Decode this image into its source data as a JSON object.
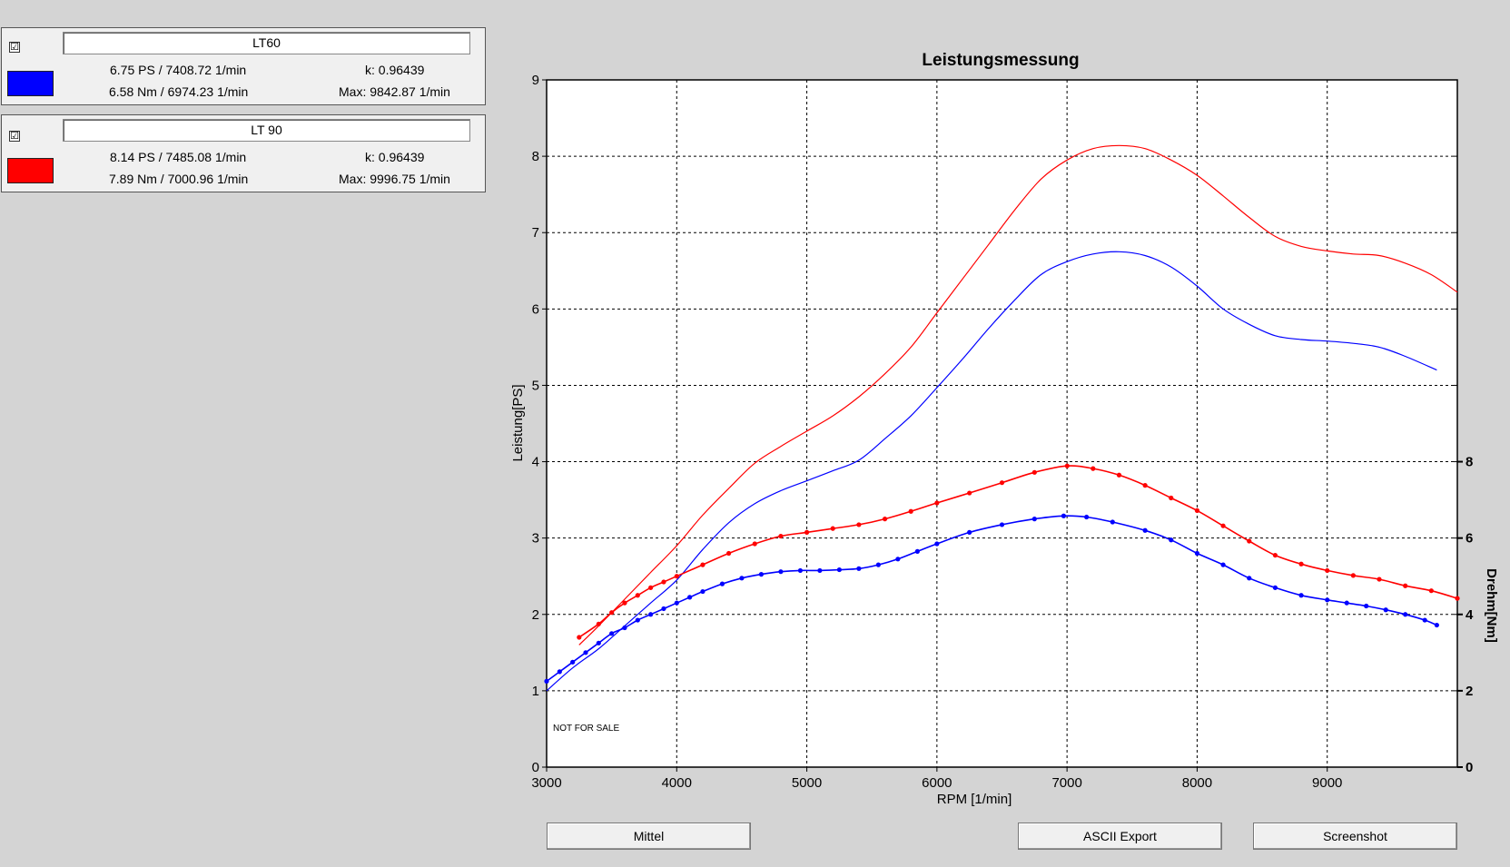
{
  "legend": [
    {
      "name": "LT60",
      "checked": "☑",
      "color": "#0000ff",
      "power": "6.75 PS / 7408.72 1/min",
      "k": "k: 0.96439",
      "torque": "6.58 Nm / 6974.23 1/min",
      "max": "Max: 9842.87 1/min"
    },
    {
      "name": "LT 90",
      "checked": "☑",
      "color": "#ff0000",
      "power": "8.14 PS / 7485.08 1/min",
      "k": "k: 0.96439",
      "torque": "7.89 Nm / 7000.96 1/min",
      "max": "Max: 9996.75 1/min"
    }
  ],
  "buttons": {
    "mittel": "Mittel",
    "ascii": "ASCII Export",
    "screenshot": "Screenshot"
  },
  "watermark": "NOT FOR SALE",
  "chart_data": {
    "type": "line",
    "title": "Leistungsmessung",
    "xlabel": "RPM [1/min]",
    "ylabel": "Leistung[PS]",
    "y2label": "Drehm[Nm]",
    "xlim": [
      3000,
      10000
    ],
    "ylim": [
      0,
      9
    ],
    "y2lim": [
      0,
      18
    ],
    "xticks": [
      3000,
      4000,
      5000,
      6000,
      7000,
      8000,
      9000
    ],
    "yticks": [
      0,
      1,
      2,
      3,
      4,
      5,
      6,
      7,
      8,
      9
    ],
    "y2ticks": [
      0,
      2,
      4,
      6,
      8
    ],
    "grid": true,
    "series": [
      {
        "name": "LT60",
        "quantity": "power",
        "color": "#0000ff",
        "markers": false,
        "x": [
          3000,
          3200,
          3400,
          3600,
          3800,
          4000,
          4200,
          4400,
          4600,
          4800,
          5000,
          5200,
          5400,
          5600,
          5800,
          6000,
          6200,
          6400,
          6600,
          6800,
          7000,
          7200,
          7400,
          7600,
          7800,
          8000,
          8200,
          8400,
          8600,
          8800,
          9000,
          9200,
          9400,
          9600,
          9842
        ],
        "y": [
          1.0,
          1.3,
          1.55,
          1.85,
          2.15,
          2.45,
          2.85,
          3.2,
          3.45,
          3.62,
          3.75,
          3.88,
          4.02,
          4.3,
          4.6,
          4.97,
          5.35,
          5.75,
          6.12,
          6.45,
          6.62,
          6.72,
          6.75,
          6.7,
          6.55,
          6.3,
          6.0,
          5.8,
          5.65,
          5.6,
          5.58,
          5.55,
          5.5,
          5.38,
          5.2
        ]
      },
      {
        "name": "LT 90",
        "quantity": "power",
        "color": "#ff0000",
        "markers": false,
        "x": [
          3250,
          3400,
          3600,
          3800,
          4000,
          4200,
          4400,
          4600,
          4800,
          5000,
          5200,
          5400,
          5600,
          5800,
          6000,
          6200,
          6400,
          6600,
          6800,
          7000,
          7200,
          7400,
          7600,
          7800,
          8000,
          8200,
          8400,
          8600,
          8800,
          9000,
          9200,
          9400,
          9600,
          9800,
          10000
        ],
        "y": [
          1.6,
          1.85,
          2.2,
          2.55,
          2.9,
          3.3,
          3.65,
          3.98,
          4.2,
          4.4,
          4.6,
          4.85,
          5.15,
          5.5,
          5.95,
          6.4,
          6.85,
          7.3,
          7.7,
          7.95,
          8.1,
          8.14,
          8.1,
          7.95,
          7.75,
          7.48,
          7.2,
          6.95,
          6.82,
          6.76,
          6.72,
          6.7,
          6.6,
          6.45,
          6.22
        ]
      },
      {
        "name": "LT60",
        "quantity": "torque",
        "color": "#0000ff",
        "markers": true,
        "x": [
          3000,
          3100,
          3200,
          3300,
          3400,
          3500,
          3600,
          3700,
          3800,
          3900,
          4000,
          4100,
          4200,
          4350,
          4500,
          4650,
          4800,
          4950,
          5100,
          5250,
          5400,
          5550,
          5700,
          5850,
          6000,
          6250,
          6500,
          6750,
          6974,
          7150,
          7350,
          7600,
          7800,
          8000,
          8200,
          8400,
          8600,
          8800,
          9000,
          9150,
          9300,
          9450,
          9600,
          9750,
          9842
        ],
        "y": [
          2.25,
          2.5,
          2.75,
          3.0,
          3.25,
          3.5,
          3.65,
          3.85,
          4.0,
          4.15,
          4.3,
          4.45,
          4.6,
          4.8,
          4.95,
          5.05,
          5.12,
          5.15,
          5.15,
          5.17,
          5.2,
          5.3,
          5.45,
          5.65,
          5.85,
          6.15,
          6.35,
          6.5,
          6.58,
          6.55,
          6.42,
          6.2,
          5.95,
          5.6,
          5.3,
          4.95,
          4.7,
          4.5,
          4.38,
          4.3,
          4.22,
          4.12,
          4.0,
          3.85,
          3.72
        ]
      },
      {
        "name": "LT 90",
        "quantity": "torque",
        "color": "#ff0000",
        "markers": true,
        "x": [
          3250,
          3400,
          3500,
          3600,
          3700,
          3800,
          3900,
          4000,
          4200,
          4400,
          4600,
          4800,
          5000,
          5200,
          5400,
          5600,
          5800,
          6000,
          6250,
          6500,
          6750,
          7001,
          7200,
          7400,
          7600,
          7800,
          8000,
          8200,
          8400,
          8600,
          8800,
          9000,
          9200,
          9400,
          9600,
          9800,
          10000
        ],
        "y": [
          3.4,
          3.75,
          4.05,
          4.3,
          4.5,
          4.7,
          4.85,
          5.0,
          5.3,
          5.6,
          5.85,
          6.05,
          6.15,
          6.25,
          6.35,
          6.5,
          6.7,
          6.92,
          7.18,
          7.45,
          7.72,
          7.89,
          7.82,
          7.65,
          7.38,
          7.05,
          6.72,
          6.32,
          5.92,
          5.55,
          5.32,
          5.15,
          5.02,
          4.92,
          4.75,
          4.62,
          4.42
        ]
      }
    ]
  }
}
